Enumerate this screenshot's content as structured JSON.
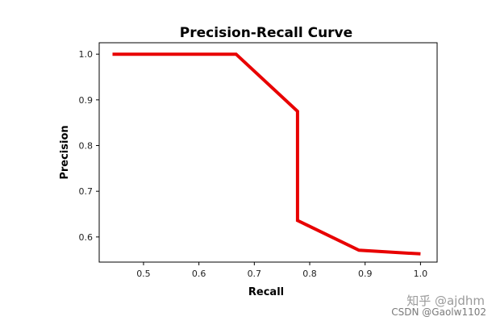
{
  "chart_data": {
    "type": "line",
    "title": "Precision-Recall Curve",
    "xlabel": "Recall",
    "ylabel": "Precision",
    "xlim": [
      0.42,
      1.03
    ],
    "ylim": [
      0.545,
      1.025
    ],
    "xticks": [
      0.5,
      0.6,
      0.7,
      0.8,
      0.9,
      1.0
    ],
    "yticks": [
      0.6,
      0.7,
      0.8,
      0.9,
      1.0
    ],
    "xtick_labels": [
      "0.5",
      "0.6",
      "0.7",
      "0.8",
      "0.9",
      "1.0"
    ],
    "ytick_labels": [
      "0.6",
      "0.7",
      "0.8",
      "0.9",
      "1.0"
    ],
    "grid": false,
    "series": [
      {
        "color": "#e80000",
        "x": [
          0.444,
          0.667,
          0.778,
          0.778,
          0.889,
          1.0
        ],
        "y": [
          1.0,
          1.0,
          0.875,
          0.636,
          0.571,
          0.563
        ]
      }
    ]
  },
  "watermarks": {
    "zhihu": "知乎 @ajdhm",
    "csdn": "CSDN @Gaolw1102"
  }
}
